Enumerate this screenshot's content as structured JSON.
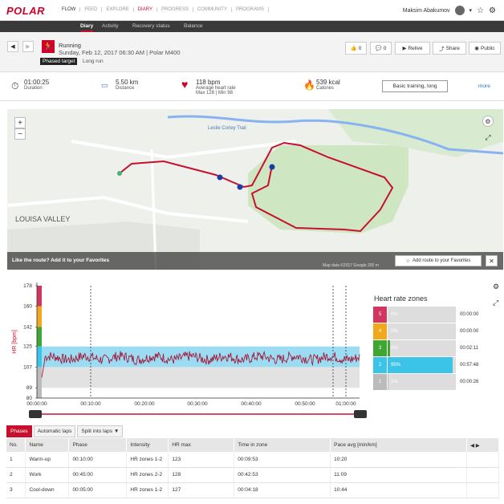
{
  "topbar": {
    "logo": "POLAR",
    "nav": [
      "FLOW",
      "FEED",
      "EXPLORE",
      "DIARY",
      "PROGRESS",
      "COMMUNITY",
      "PROGRAMS"
    ],
    "active": "DIARY",
    "user": "Maksim Abakumov"
  },
  "subnav": [
    "Diary",
    "Activity",
    "Recovery status",
    "Balance"
  ],
  "session": {
    "sport": "Running",
    "datetime": "Sunday, Feb 12, 2017 06:30 AM | Polar M400",
    "phased": "Phased target",
    "target": "Long run"
  },
  "actions": {
    "likes": "0",
    "comments": "0",
    "relive": "Relive",
    "share": "Share",
    "public": "Public"
  },
  "summary": {
    "duration": {
      "value": "01:00:25",
      "label": "Duration"
    },
    "distance": {
      "value": "5.50 km",
      "label": "Distance"
    },
    "hr": {
      "value": "118 bpm",
      "label": "Average heart rate",
      "sub": "Max 128  |  Min 98"
    },
    "calories": {
      "value": "539 kcal",
      "label": "Calories"
    },
    "button": "Basic training, long",
    "more": "more"
  },
  "map": {
    "banner": "Like the route? Add it to your Favorites",
    "addbtn": "Add route to your Favorites",
    "credit": "Map data ©2017 Google   200 m",
    "place": "LOUISA VALLEY",
    "trail": "Leslie Corley Trail"
  },
  "chart": {
    "ylabel": "HR [bpm]",
    "yticks": [
      "178",
      "160",
      "142",
      "125",
      "107",
      "89",
      "80"
    ],
    "xticks": [
      "00:00:00",
      "00:10:00",
      "00:20:00",
      "00:30:00",
      "00:40:00",
      "00:50:00",
      "01:00:00"
    ]
  },
  "zones": {
    "title": "Heart rate zones",
    "items": [
      {
        "n": "5",
        "pct": "0%",
        "time": "00:00:00",
        "color": "#d1365f",
        "frac": 0
      },
      {
        "n": "4",
        "pct": "0%",
        "time": "00:00:00",
        "color": "#f2a81d",
        "frac": 0
      },
      {
        "n": "3",
        "pct": "4%",
        "time": "00:02:11",
        "color": "#3fa535",
        "frac": 0.04
      },
      {
        "n": "2",
        "pct": "95%",
        "time": "00:57:48",
        "color": "#3cc3e8",
        "frac": 0.95
      },
      {
        "n": "1",
        "pct": "1%",
        "time": "00:00:26",
        "color": "#bbbbbb",
        "frac": 0.01
      }
    ]
  },
  "tabs": [
    "Phases",
    "Automatic laps",
    "Split into laps"
  ],
  "table": {
    "headers": [
      "No.",
      "Name",
      "Phase",
      "Intensity",
      "HR max",
      "Time in zone",
      "Pace avg [min/km]"
    ],
    "rows": [
      [
        "1",
        "Warm-up",
        "00:10:00",
        "HR zones 1-2",
        "123",
        "00:09:53",
        "10:20"
      ],
      [
        "2",
        "Work",
        "00:45:00",
        "HR zones 2-2",
        "128",
        "00:42:53",
        "11:09"
      ],
      [
        "3",
        "Cool-down",
        "00:05:00",
        "HR zones 1-2",
        "127",
        "00:04:18",
        "10:44"
      ]
    ]
  }
}
